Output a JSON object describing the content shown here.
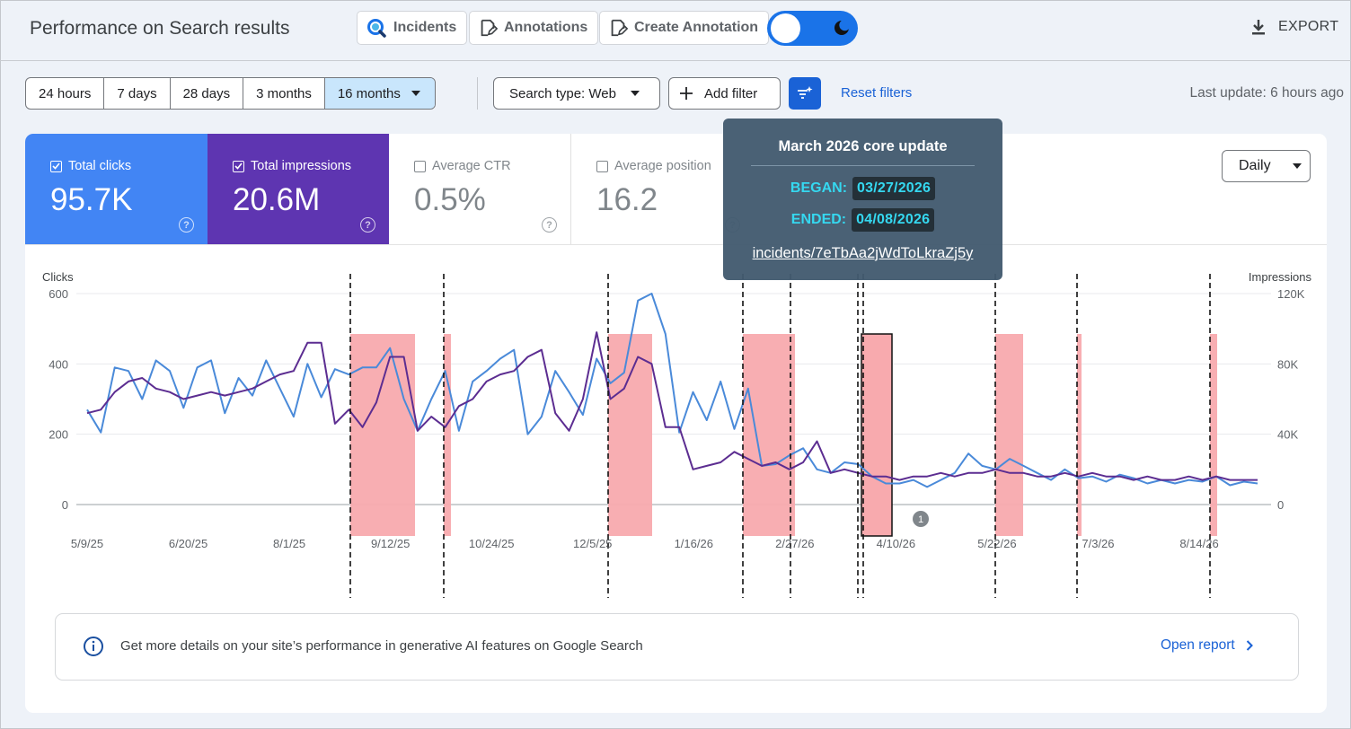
{
  "header": {
    "title": "Performance on Search results",
    "buttons": {
      "incidents": "Incidents",
      "annotations": "Annotations",
      "create_annotation": "Create Annotation"
    },
    "export": "EXPORT"
  },
  "filters": {
    "ranges": [
      "24 hours",
      "7 days",
      "28 days",
      "3 months",
      "16 months"
    ],
    "selected_range": "16 months",
    "search_type": "Search type: Web",
    "add_filter": "Add filter",
    "reset": "Reset filters",
    "last_update": "Last update: 6 hours ago"
  },
  "metrics": {
    "clicks": {
      "label": "Total clicks",
      "value": "95.7K",
      "checked": true
    },
    "impressions": {
      "label": "Total impressions",
      "value": "20.6M",
      "checked": true
    },
    "ctr": {
      "label": "Average CTR",
      "value": "0.5%",
      "checked": false
    },
    "position": {
      "label": "Average position",
      "value": "16.2",
      "checked": false
    }
  },
  "granularity": "Daily",
  "chart_data": {
    "type": "line",
    "left_axis_label": "Clicks",
    "right_axis_label": "Impressions",
    "y_left": {
      "ticks": [
        0,
        200,
        400,
        600
      ],
      "ylim": [
        0,
        600
      ]
    },
    "y_right": {
      "ticks": [
        "0",
        "40K",
        "80K",
        "120K"
      ],
      "ylim": [
        0,
        120000
      ]
    },
    "x_tick_labels": [
      "5/9/25",
      "6/20/25",
      "8/1/25",
      "9/12/25",
      "10/24/25",
      "12/5/25",
      "1/16/26",
      "2/27/26",
      "4/10/26",
      "5/22/26",
      "7/3/26",
      "8/14/26"
    ],
    "series": [
      {
        "name": "Clicks",
        "color": "#4a8ad9",
        "values": [
          270,
          205,
          390,
          380,
          300,
          410,
          380,
          275,
          390,
          410,
          260,
          360,
          310,
          410,
          330,
          250,
          400,
          305,
          385,
          370,
          390,
          390,
          445,
          300,
          210,
          300,
          380,
          210,
          350,
          380,
          415,
          440,
          200,
          250,
          380,
          320,
          255,
          415,
          345,
          375,
          580,
          600,
          485,
          205,
          320,
          240,
          350,
          215,
          330,
          110,
          115,
          140,
          160,
          100,
          90,
          120,
          115,
          80,
          60,
          60,
          70,
          50,
          70,
          90,
          145,
          110,
          100,
          130,
          110,
          90,
          70,
          100,
          75,
          80,
          65,
          85,
          75,
          60,
          70,
          60,
          70,
          65,
          80,
          55,
          65,
          60
        ]
      },
      {
        "name": "Impressions",
        "color": "#5c2d91",
        "values": [
          52000,
          54000,
          64000,
          70000,
          72000,
          66000,
          64000,
          60000,
          62000,
          64000,
          62000,
          64000,
          66000,
          70000,
          74000,
          76000,
          92000,
          92000,
          46000,
          54000,
          44000,
          58000,
          84000,
          84000,
          42000,
          50000,
          44000,
          56000,
          60000,
          70000,
          74000,
          76000,
          84000,
          88000,
          52000,
          42000,
          60000,
          98000,
          60000,
          66000,
          84000,
          80000,
          44000,
          44000,
          20000,
          22000,
          24000,
          30000,
          26000,
          22000,
          24000,
          20000,
          24000,
          36000,
          18000,
          20000,
          18000,
          16000,
          16000,
          14000,
          16000,
          16000,
          18000,
          16000,
          18000,
          18000,
          20000,
          18000,
          18000,
          16000,
          16000,
          18000,
          16000,
          18000,
          16000,
          16000,
          14000,
          16000,
          14000,
          14000,
          16000,
          14000,
          16000,
          14000,
          14000,
          14000
        ]
      }
    ],
    "incident_marker_count": "1"
  },
  "tooltip": {
    "title": "March 2026 core update",
    "began_label": "BEGAN:",
    "began": "03/27/2026",
    "ended_label": "ENDED:",
    "ended": "04/08/2026",
    "link": "incidents/7eTbAa2jWdToLkraZj5y"
  },
  "banner": {
    "text": "Get more details on your site’s performance in generative AI features on Google Search",
    "link": "Open report"
  }
}
